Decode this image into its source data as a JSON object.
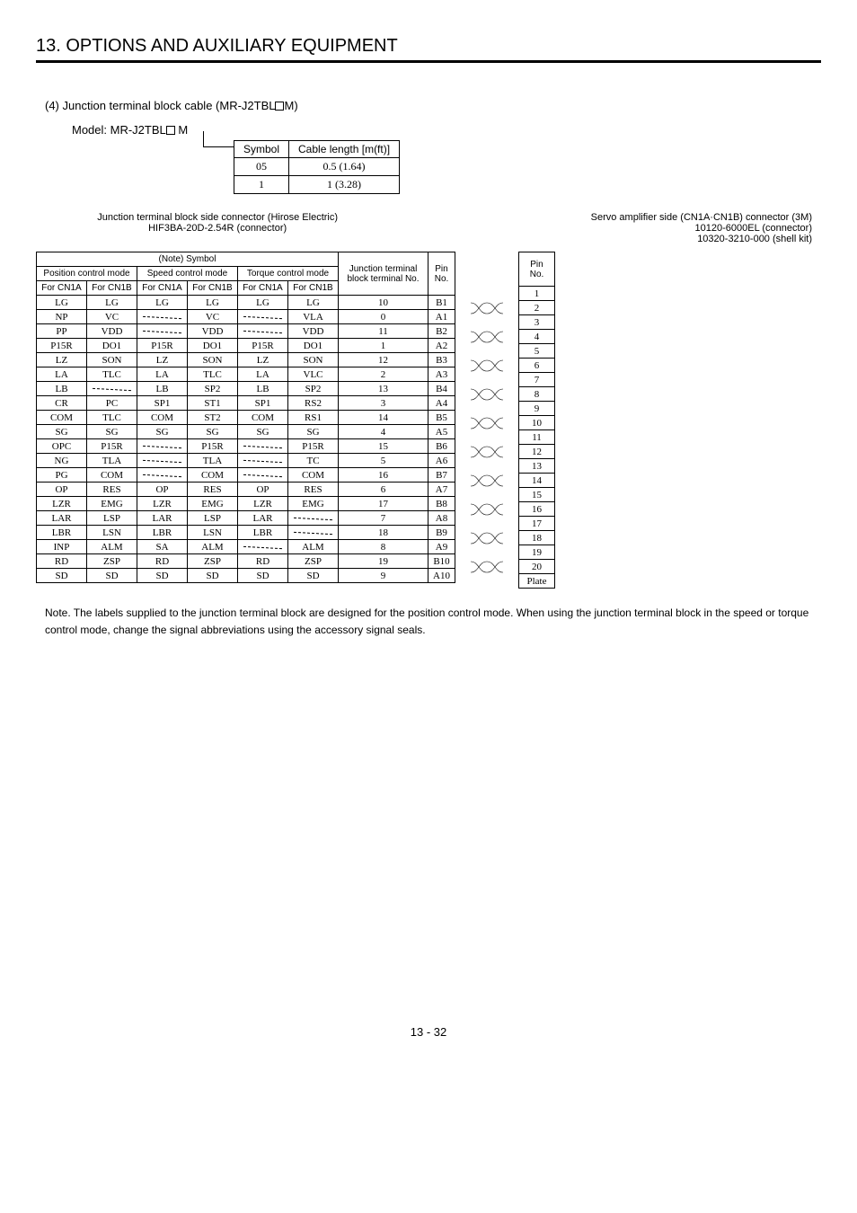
{
  "chapter_title": "13. OPTIONS AND AUXILIARY EQUIPMENT",
  "section_heading_before": "(4) Junction terminal block cable (MR-J2TBL",
  "section_heading_after": "M)",
  "model_label_before": "Model: MR-J2TBL",
  "model_label_after": " M",
  "symbol_table": {
    "headers": [
      "Symbol",
      "Cable length [m(ft)]"
    ],
    "rows": [
      [
        "05",
        "0.5 (1.64)"
      ],
      [
        "1",
        "1 (3.28)"
      ]
    ]
  },
  "conn_left_lines": [
    "Junction terminal block side connector (Hirose Electric)",
    "HIF3BA-20D-2.54R (connector)"
  ],
  "conn_right_lines": [
    "Servo amplifier side (CN1A·CN1B) connector (3M)",
    "10120-6000EL (connector)",
    "10320-3210-000 (shell kit)"
  ],
  "main_headers": {
    "note_symbol": "(Note) Symbol",
    "pos_mode": "Position control mode",
    "speed_mode": "Speed control mode",
    "torque_mode": "Torque control mode",
    "for_cn1a": "For CN1A",
    "for_cn1b": "For CN1B",
    "junction": "Junction terminal block terminal No.",
    "pin_no": "Pin No."
  },
  "rows": [
    {
      "p_a": "LG",
      "p_b": "LG",
      "s_a": "LG",
      "s_b": "LG",
      "t_a": "LG",
      "t_b": "LG",
      "jt": "10",
      "pin": "B1",
      "rpin": "1"
    },
    {
      "p_a": "NP",
      "p_b": "VC",
      "s_a": "",
      "s_b": "VC",
      "t_a": "",
      "t_b": "VLA",
      "jt": "0",
      "pin": "A1",
      "rpin": "2"
    },
    {
      "p_a": "PP",
      "p_b": "VDD",
      "s_a": "",
      "s_b": "VDD",
      "t_a": "",
      "t_b": "VDD",
      "jt": "11",
      "pin": "B2",
      "rpin": "3"
    },
    {
      "p_a": "P15R",
      "p_b": "DO1",
      "s_a": "P15R",
      "s_b": "DO1",
      "t_a": "P15R",
      "t_b": "DO1",
      "jt": "1",
      "pin": "A2",
      "rpin": "4"
    },
    {
      "p_a": "LZ",
      "p_b": "SON",
      "s_a": "LZ",
      "s_b": "SON",
      "t_a": "LZ",
      "t_b": "SON",
      "jt": "12",
      "pin": "B3",
      "rpin": "5"
    },
    {
      "p_a": "LA",
      "p_b": "TLC",
      "s_a": "LA",
      "s_b": "TLC",
      "t_a": "LA",
      "t_b": "VLC",
      "jt": "2",
      "pin": "A3",
      "rpin": "6"
    },
    {
      "p_a": "LB",
      "p_b": "",
      "s_a": "LB",
      "s_b": "SP2",
      "t_a": "LB",
      "t_b": "SP2",
      "jt": "13",
      "pin": "B4",
      "rpin": "7"
    },
    {
      "p_a": "CR",
      "p_b": "PC",
      "s_a": "SP1",
      "s_b": "ST1",
      "t_a": "SP1",
      "t_b": "RS2",
      "jt": "3",
      "pin": "A4",
      "rpin": "8"
    },
    {
      "p_a": "COM",
      "p_b": "TLC",
      "s_a": "COM",
      "s_b": "ST2",
      "t_a": "COM",
      "t_b": "RS1",
      "jt": "14",
      "pin": "B5",
      "rpin": "9"
    },
    {
      "p_a": "SG",
      "p_b": "SG",
      "s_a": "SG",
      "s_b": "SG",
      "t_a": "SG",
      "t_b": "SG",
      "jt": "4",
      "pin": "A5",
      "rpin": "10"
    },
    {
      "p_a": "OPC",
      "p_b": "P15R",
      "s_a": "",
      "s_b": "P15R",
      "t_a": "",
      "t_b": "P15R",
      "jt": "15",
      "pin": "B6",
      "rpin": "11"
    },
    {
      "p_a": "NG",
      "p_b": "TLA",
      "s_a": "",
      "s_b": "TLA",
      "t_a": "",
      "t_b": "TC",
      "jt": "5",
      "pin": "A6",
      "rpin": "12"
    },
    {
      "p_a": "PG",
      "p_b": "COM",
      "s_a": "",
      "s_b": "COM",
      "t_a": "",
      "t_b": "COM",
      "jt": "16",
      "pin": "B7",
      "rpin": "13"
    },
    {
      "p_a": "OP",
      "p_b": "RES",
      "s_a": "OP",
      "s_b": "RES",
      "t_a": "OP",
      "t_b": "RES",
      "jt": "6",
      "pin": "A7",
      "rpin": "14"
    },
    {
      "p_a": "LZR",
      "p_b": "EMG",
      "s_a": "LZR",
      "s_b": "EMG",
      "t_a": "LZR",
      "t_b": "EMG",
      "jt": "17",
      "pin": "B8",
      "rpin": "15"
    },
    {
      "p_a": "LAR",
      "p_b": "LSP",
      "s_a": "LAR",
      "s_b": "LSP",
      "t_a": "LAR",
      "t_b": "",
      "jt": "7",
      "pin": "A8",
      "rpin": "16"
    },
    {
      "p_a": "LBR",
      "p_b": "LSN",
      "s_a": "LBR",
      "s_b": "LSN",
      "t_a": "LBR",
      "t_b": "",
      "jt": "18",
      "pin": "B9",
      "rpin": "17"
    },
    {
      "p_a": "INP",
      "p_b": "ALM",
      "s_a": "SA",
      "s_b": "ALM",
      "t_a": "",
      "t_b": "ALM",
      "jt": "8",
      "pin": "A9",
      "rpin": "18"
    },
    {
      "p_a": "RD",
      "p_b": "ZSP",
      "s_a": "RD",
      "s_b": "ZSP",
      "t_a": "RD",
      "t_b": "ZSP",
      "jt": "19",
      "pin": "B10",
      "rpin": "19"
    },
    {
      "p_a": "SD",
      "p_b": "SD",
      "s_a": "SD",
      "s_b": "SD",
      "t_a": "SD",
      "t_b": "SD",
      "jt": "9",
      "pin": "A10",
      "rpin": "20"
    }
  ],
  "plate_label": "Plate",
  "note_text": "Note. The labels supplied to the junction terminal block are designed for the position control mode. When using the junction terminal block in the speed or torque control mode, change the signal abbreviations using the accessory signal seals.",
  "page_number": "13 -  32"
}
